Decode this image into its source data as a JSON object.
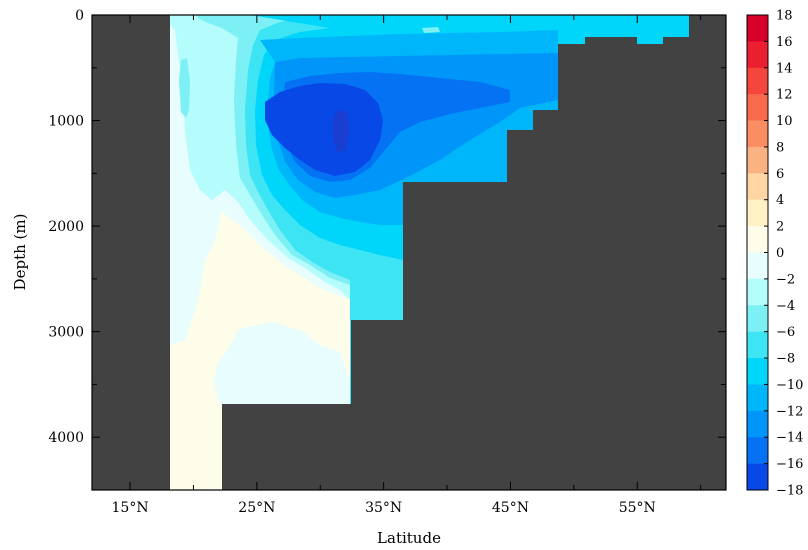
{
  "chart_data": {
    "type": "heatmap",
    "title": "",
    "xlabel": "Latitude",
    "ylabel": "Depth (m)",
    "x_range": [
      12,
      62
    ],
    "y_range": [
      0,
      4500
    ],
    "y_inverted": true,
    "x_ticks": [
      {
        "value": 15,
        "label": "15°N"
      },
      {
        "value": 25,
        "label": "25°N"
      },
      {
        "value": 35,
        "label": "35°N"
      },
      {
        "value": 45,
        "label": "45°N"
      },
      {
        "value": 55,
        "label": "55°N"
      }
    ],
    "y_ticks": [
      {
        "value": 0,
        "label": "0"
      },
      {
        "value": 1000,
        "label": "1000"
      },
      {
        "value": 2000,
        "label": "2000"
      },
      {
        "value": 3000,
        "label": "3000"
      },
      {
        "value": 4000,
        "label": "4000"
      }
    ],
    "colorbar": {
      "levels": [
        "18",
        "16",
        "14",
        "12",
        "10",
        "8",
        "6",
        "4",
        "2",
        "0",
        "−2",
        "−4",
        "−6",
        "−8",
        "−10",
        "−12",
        "−14",
        "−16",
        "−18"
      ],
      "colors": [
        "#d7002a",
        "#ec1f30",
        "#f4463c",
        "#f86a4c",
        "#fa8e62",
        "#fbb282",
        "#fdd6a3",
        "#fff1c6",
        "#fdfdea",
        "#e8fdfd",
        "#b5fcfc",
        "#7df0f5",
        "#3ce4f4",
        "#00d6fa",
        "#00b6fb",
        "#0096f9",
        "#0472f3",
        "#0848e6"
      ]
    },
    "land_color": "#424242",
    "contour_fields": [
      {
        "level": "0",
        "color": "#fdfdea",
        "latitude_min": 19,
        "depth_max": 4500
      },
      {
        "level": "−2",
        "color": "#e8fdfd",
        "latitude_min": 19,
        "depth_max": 3200
      },
      {
        "level": "−4",
        "color": "#b5fcfc",
        "latitude_min": 20,
        "depth_max": 2900
      },
      {
        "level": "−6",
        "color": "#7df0f5",
        "latitude_min": 22,
        "depth_max": 2700
      },
      {
        "level": "−8",
        "color": "#3ce4f4",
        "latitude_min": 25,
        "depth_max": 2400
      },
      {
        "level": "−10",
        "color": "#00d6fa",
        "latitude_min": 26,
        "depth_max": 2100
      },
      {
        "level": "−12",
        "color": "#00b6fb",
        "latitude_min": 27,
        "depth_max": 1800
      },
      {
        "level": "−14",
        "color": "#0096f9",
        "latitude_min": 27,
        "depth_max": 1600
      },
      {
        "level": "−16",
        "color": "#0472f3",
        "latitude_min": 28,
        "depth_max": 1500
      },
      {
        "level": "−18",
        "color": "#0848e6",
        "latitude_min": 32,
        "depth_max": 1250
      }
    ]
  }
}
